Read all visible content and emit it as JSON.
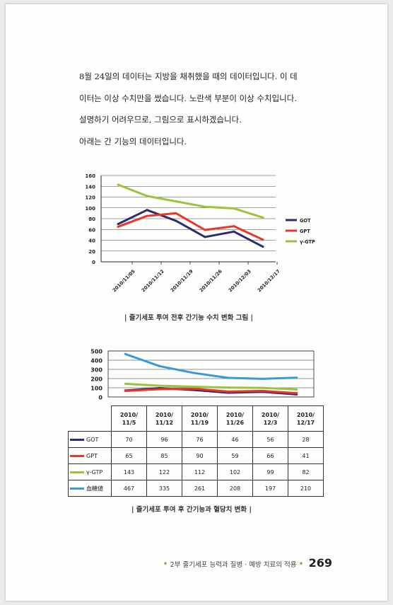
{
  "paragraph": [
    "8월 24일의 데이터는 지방을 채취했을 때의 데이터입니다. 이 데",
    "이터는 이상 수치만을 썼습니다. 노란색 부분이 이상 수치입니다.",
    "설명하기 어려우므로, 그림으로 표시하겠습니다.",
    "아래는 간 기능의 데이터입니다."
  ],
  "chart_data": [
    {
      "type": "line",
      "categories": [
        "2010/11/05",
        "2010/11/12",
        "2010/11/19",
        "2010/11/26",
        "2010/12/03",
        "2010/12/17"
      ],
      "series": [
        {
          "name": "GOT",
          "values": [
            70,
            96,
            76,
            46,
            56,
            28
          ],
          "color": "#2a2e6e"
        },
        {
          "name": "GPT",
          "values": [
            65,
            85,
            90,
            59,
            66,
            41
          ],
          "color": "#e8362b"
        },
        {
          "name": "γ-GTP",
          "values": [
            143,
            122,
            112,
            102,
            99,
            82
          ],
          "color": "#9dc23b"
        }
      ],
      "ylim": [
        0,
        160
      ],
      "yticks": [
        0,
        20,
        40,
        60,
        80,
        100,
        120,
        140,
        160
      ],
      "grid": true,
      "legend_position": "right",
      "caption": "| 줄기세포 투여 전후 간기능 수치 변화 그림 |"
    },
    {
      "type": "line",
      "categories": [
        "2010/\n11/5",
        "2010/\n11/12",
        "2010/\n11/19",
        "2010/\n11/26",
        "2010/\n12/3",
        "2010/\n12/17"
      ],
      "series": [
        {
          "name": "GOT",
          "values": [
            70,
            96,
            76,
            46,
            56,
            28
          ],
          "color": "#2a2e6e"
        },
        {
          "name": "GPT",
          "values": [
            65,
            85,
            90,
            59,
            66,
            41
          ],
          "color": "#e8362b"
        },
        {
          "name": "γ-GTP",
          "values": [
            143,
            122,
            112,
            102,
            99,
            82
          ],
          "color": "#9dc23b"
        },
        {
          "name": "血糖値",
          "values": [
            467,
            335,
            261,
            208,
            197,
            210
          ],
          "color": "#3a9ad9"
        }
      ],
      "ylim": [
        0,
        500
      ],
      "yticks": [
        0,
        100,
        200,
        300,
        400,
        500
      ],
      "grid": true,
      "legend_position": "data-table",
      "caption": "| 줄기세포 투여 후 간기능과 혈당치 변화 |"
    }
  ],
  "footer": {
    "section": "2부  줄기세포 능력과 질병 · 예방 치료의 적용",
    "page_number": "269",
    "dot_color": "#6bb33a"
  }
}
